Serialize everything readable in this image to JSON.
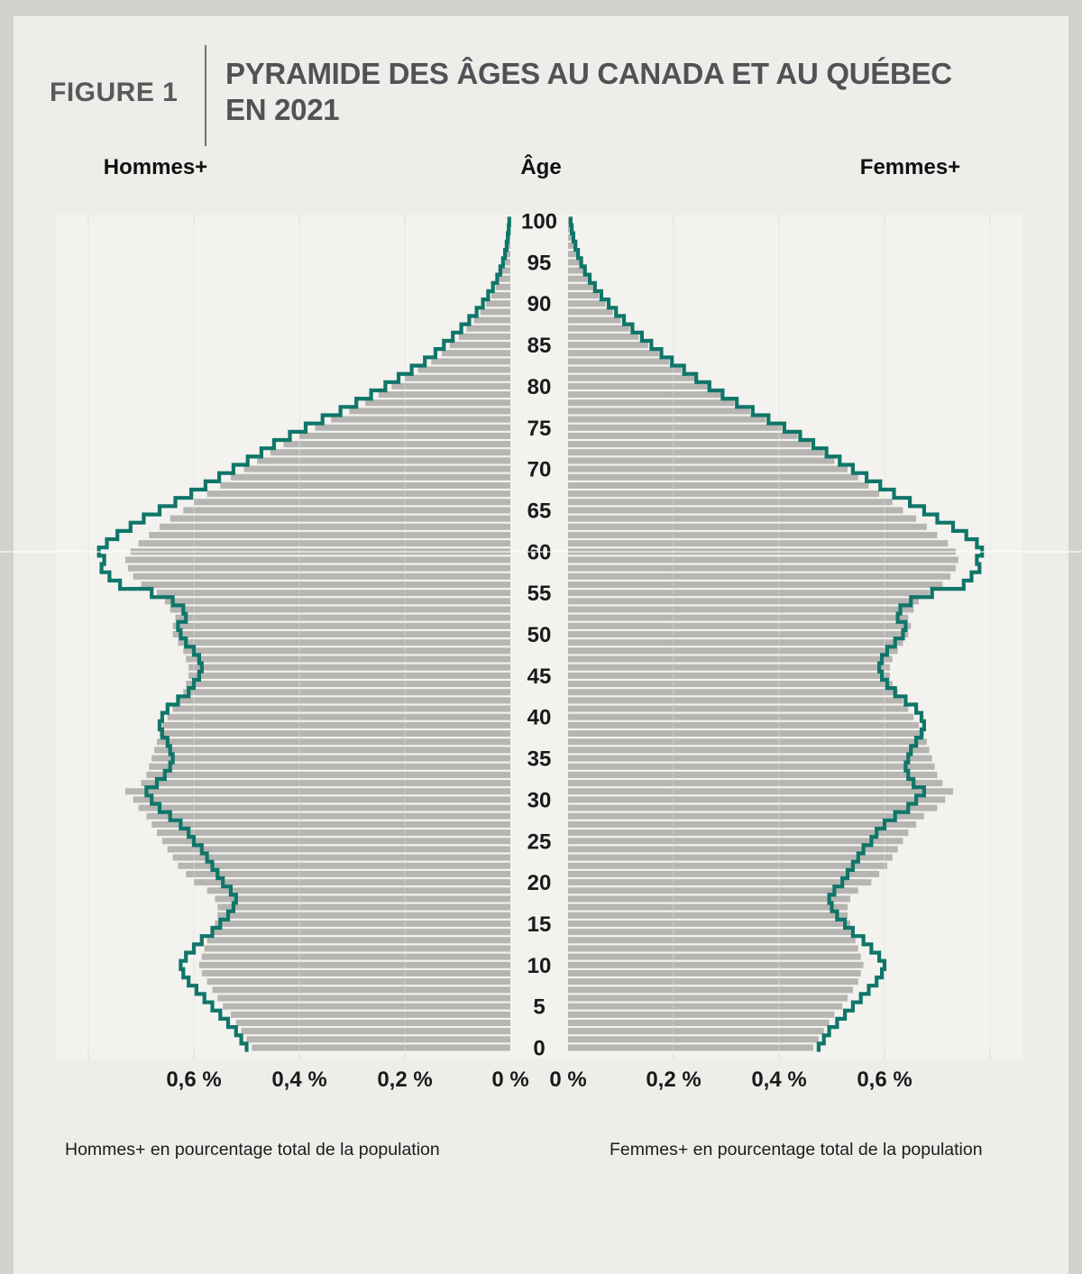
{
  "figure": {
    "label": "FIGURE 1",
    "title": "PYRAMIDE DES ÂGES AU CANADA ET AU QUÉBEC EN 2021"
  },
  "headers": {
    "left": "Hommes+",
    "center": "Âge",
    "right": "Femmes+"
  },
  "captions": {
    "left": "Hommes+ en pourcentage total de la population",
    "right": "Femmes+ en pourcentage total de la population"
  },
  "colors": {
    "page_bg": "#d2d1cc",
    "card_bg": "#eeedea",
    "plot_bg": "#f3f2ef",
    "bar": "#b6b5b2",
    "line": "#0f7669",
    "grid": "#dcdbd7",
    "title": "#515256",
    "text_dark": "#1a1a1a"
  },
  "chart_data": {
    "type": "bar",
    "subtype": "population-pyramid",
    "title": "Pyramide des âges au Canada et au Québec en 2021",
    "unit": "pourcentage du total de la population",
    "age_min": 0,
    "age_max": 100,
    "age_tick_step": 5,
    "xlim": [
      0,
      0.8
    ],
    "grid": true,
    "grid_values": [
      0.2,
      0.4,
      0.6,
      0.8
    ],
    "x_ticks": {
      "values": [
        0,
        0.2,
        0.4,
        0.6
      ],
      "labels": [
        "0 %",
        "0,2 %",
        "0,4 %",
        "0,6 %"
      ]
    },
    "series": [
      {
        "name": "Canada — Hommes+",
        "region": "Canada",
        "sex": "Hommes+",
        "side": "left",
        "style": "bar",
        "values": [
          0.49,
          0.5,
          0.51,
          0.52,
          0.53,
          0.545,
          0.555,
          0.565,
          0.575,
          0.585,
          0.59,
          0.585,
          0.58,
          0.575,
          0.565,
          0.56,
          0.555,
          0.555,
          0.56,
          0.575,
          0.6,
          0.615,
          0.63,
          0.64,
          0.65,
          0.66,
          0.67,
          0.68,
          0.69,
          0.705,
          0.715,
          0.73,
          0.7,
          0.69,
          0.685,
          0.68,
          0.675,
          0.67,
          0.665,
          0.66,
          0.65,
          0.64,
          0.63,
          0.62,
          0.615,
          0.61,
          0.61,
          0.615,
          0.62,
          0.63,
          0.64,
          0.64,
          0.635,
          0.645,
          0.655,
          0.67,
          0.7,
          0.715,
          0.725,
          0.73,
          0.72,
          0.705,
          0.685,
          0.665,
          0.645,
          0.62,
          0.6,
          0.575,
          0.55,
          0.53,
          0.505,
          0.48,
          0.455,
          0.43,
          0.4,
          0.37,
          0.34,
          0.305,
          0.275,
          0.25,
          0.225,
          0.2,
          0.175,
          0.15,
          0.13,
          0.115,
          0.098,
          0.083,
          0.069,
          0.057,
          0.046,
          0.036,
          0.028,
          0.021,
          0.016,
          0.012,
          0.008,
          0.006,
          0.004,
          0.003,
          0.002
        ]
      },
      {
        "name": "Canada — Femmes+",
        "region": "Canada",
        "sex": "Femmes+",
        "side": "right",
        "style": "bar",
        "values": [
          0.465,
          0.475,
          0.485,
          0.495,
          0.505,
          0.52,
          0.53,
          0.54,
          0.55,
          0.555,
          0.56,
          0.555,
          0.55,
          0.545,
          0.54,
          0.535,
          0.53,
          0.53,
          0.535,
          0.55,
          0.575,
          0.59,
          0.605,
          0.615,
          0.625,
          0.635,
          0.645,
          0.66,
          0.675,
          0.7,
          0.715,
          0.73,
          0.71,
          0.7,
          0.695,
          0.69,
          0.685,
          0.68,
          0.675,
          0.665,
          0.655,
          0.645,
          0.635,
          0.625,
          0.615,
          0.61,
          0.61,
          0.615,
          0.625,
          0.635,
          0.645,
          0.65,
          0.645,
          0.655,
          0.665,
          0.685,
          0.71,
          0.725,
          0.735,
          0.74,
          0.735,
          0.72,
          0.7,
          0.68,
          0.66,
          0.635,
          0.615,
          0.59,
          0.57,
          0.55,
          0.53,
          0.505,
          0.485,
          0.46,
          0.435,
          0.405,
          0.375,
          0.345,
          0.315,
          0.29,
          0.265,
          0.24,
          0.215,
          0.192,
          0.172,
          0.152,
          0.134,
          0.117,
          0.1,
          0.085,
          0.071,
          0.058,
          0.047,
          0.037,
          0.029,
          0.022,
          0.016,
          0.012,
          0.008,
          0.006,
          0.004
        ]
      },
      {
        "name": "Québec — Hommes+",
        "region": "Québec",
        "sex": "Hommes+",
        "side": "left",
        "style": "step-outline",
        "values": [
          0.5,
          0.51,
          0.52,
          0.535,
          0.55,
          0.565,
          0.58,
          0.595,
          0.61,
          0.62,
          0.625,
          0.615,
          0.6,
          0.585,
          0.565,
          0.55,
          0.535,
          0.525,
          0.52,
          0.53,
          0.545,
          0.555,
          0.565,
          0.575,
          0.585,
          0.6,
          0.61,
          0.625,
          0.645,
          0.665,
          0.68,
          0.69,
          0.67,
          0.655,
          0.645,
          0.64,
          0.645,
          0.65,
          0.66,
          0.665,
          0.66,
          0.65,
          0.63,
          0.61,
          0.6,
          0.59,
          0.585,
          0.59,
          0.6,
          0.615,
          0.625,
          0.63,
          0.615,
          0.62,
          0.64,
          0.68,
          0.74,
          0.76,
          0.775,
          0.77,
          0.78,
          0.765,
          0.745,
          0.72,
          0.695,
          0.665,
          0.635,
          0.605,
          0.578,
          0.552,
          0.525,
          0.498,
          0.472,
          0.448,
          0.418,
          0.388,
          0.356,
          0.322,
          0.292,
          0.264,
          0.237,
          0.212,
          0.187,
          0.162,
          0.142,
          0.126,
          0.109,
          0.093,
          0.078,
          0.064,
          0.052,
          0.042,
          0.033,
          0.025,
          0.019,
          0.014,
          0.01,
          0.007,
          0.005,
          0.003,
          0.002
        ]
      },
      {
        "name": "Québec — Femmes+",
        "region": "Québec",
        "sex": "Femmes+",
        "side": "right",
        "style": "step-outline",
        "values": [
          0.475,
          0.485,
          0.495,
          0.51,
          0.525,
          0.54,
          0.555,
          0.57,
          0.585,
          0.595,
          0.6,
          0.59,
          0.575,
          0.56,
          0.54,
          0.525,
          0.51,
          0.5,
          0.495,
          0.505,
          0.52,
          0.53,
          0.54,
          0.55,
          0.56,
          0.575,
          0.585,
          0.6,
          0.62,
          0.645,
          0.66,
          0.675,
          0.655,
          0.645,
          0.64,
          0.645,
          0.65,
          0.66,
          0.67,
          0.675,
          0.67,
          0.66,
          0.64,
          0.62,
          0.605,
          0.595,
          0.59,
          0.595,
          0.605,
          0.62,
          0.635,
          0.64,
          0.625,
          0.63,
          0.65,
          0.69,
          0.75,
          0.765,
          0.78,
          0.775,
          0.785,
          0.775,
          0.755,
          0.73,
          0.7,
          0.675,
          0.648,
          0.618,
          0.592,
          0.566,
          0.54,
          0.515,
          0.49,
          0.465,
          0.44,
          0.41,
          0.38,
          0.35,
          0.32,
          0.293,
          0.268,
          0.243,
          0.22,
          0.197,
          0.177,
          0.158,
          0.14,
          0.122,
          0.106,
          0.091,
          0.077,
          0.063,
          0.051,
          0.041,
          0.032,
          0.025,
          0.019,
          0.014,
          0.01,
          0.007,
          0.005
        ]
      }
    ]
  }
}
